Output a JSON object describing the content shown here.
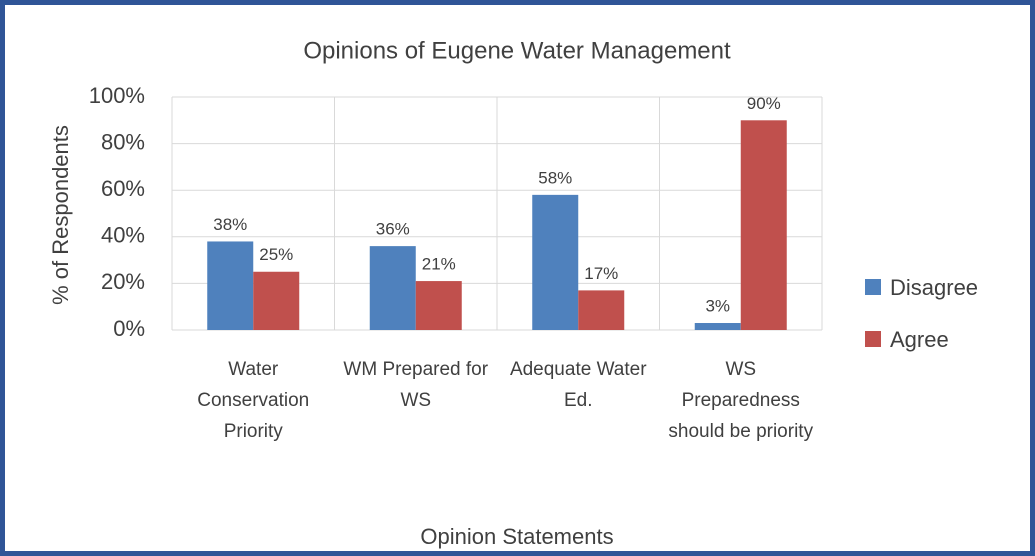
{
  "chart_data": {
    "type": "bar",
    "title": "Opinions of Eugene Water Management",
    "x_label": "Opinion Statements",
    "y_label": "% of Respondents",
    "categories": [
      "Water Conservation Priority",
      "WM Prepared for WS",
      "Adequate Water Ed.",
      "WS Preparedness should be priority"
    ],
    "series": [
      {
        "name": "Disagree",
        "color": "#4f81bd",
        "values": [
          38,
          36,
          58,
          3
        ],
        "value_labels": [
          "38%",
          "36%",
          "58%",
          "3%"
        ]
      },
      {
        "name": "Agree",
        "color": "#c0504d",
        "values": [
          25,
          21,
          17,
          90
        ],
        "value_labels": [
          "25%",
          "21%",
          "17%",
          "90%"
        ]
      }
    ],
    "ylim": [
      0,
      100
    ],
    "yticks": [
      {
        "value": 0,
        "label": "0%"
      },
      {
        "value": 20,
        "label": "20%"
      },
      {
        "value": 40,
        "label": "40%"
      },
      {
        "value": 60,
        "label": "60%"
      },
      {
        "value": 80,
        "label": "80%"
      },
      {
        "value": 100,
        "label": "100%"
      }
    ],
    "grid": true,
    "legend": "right"
  }
}
